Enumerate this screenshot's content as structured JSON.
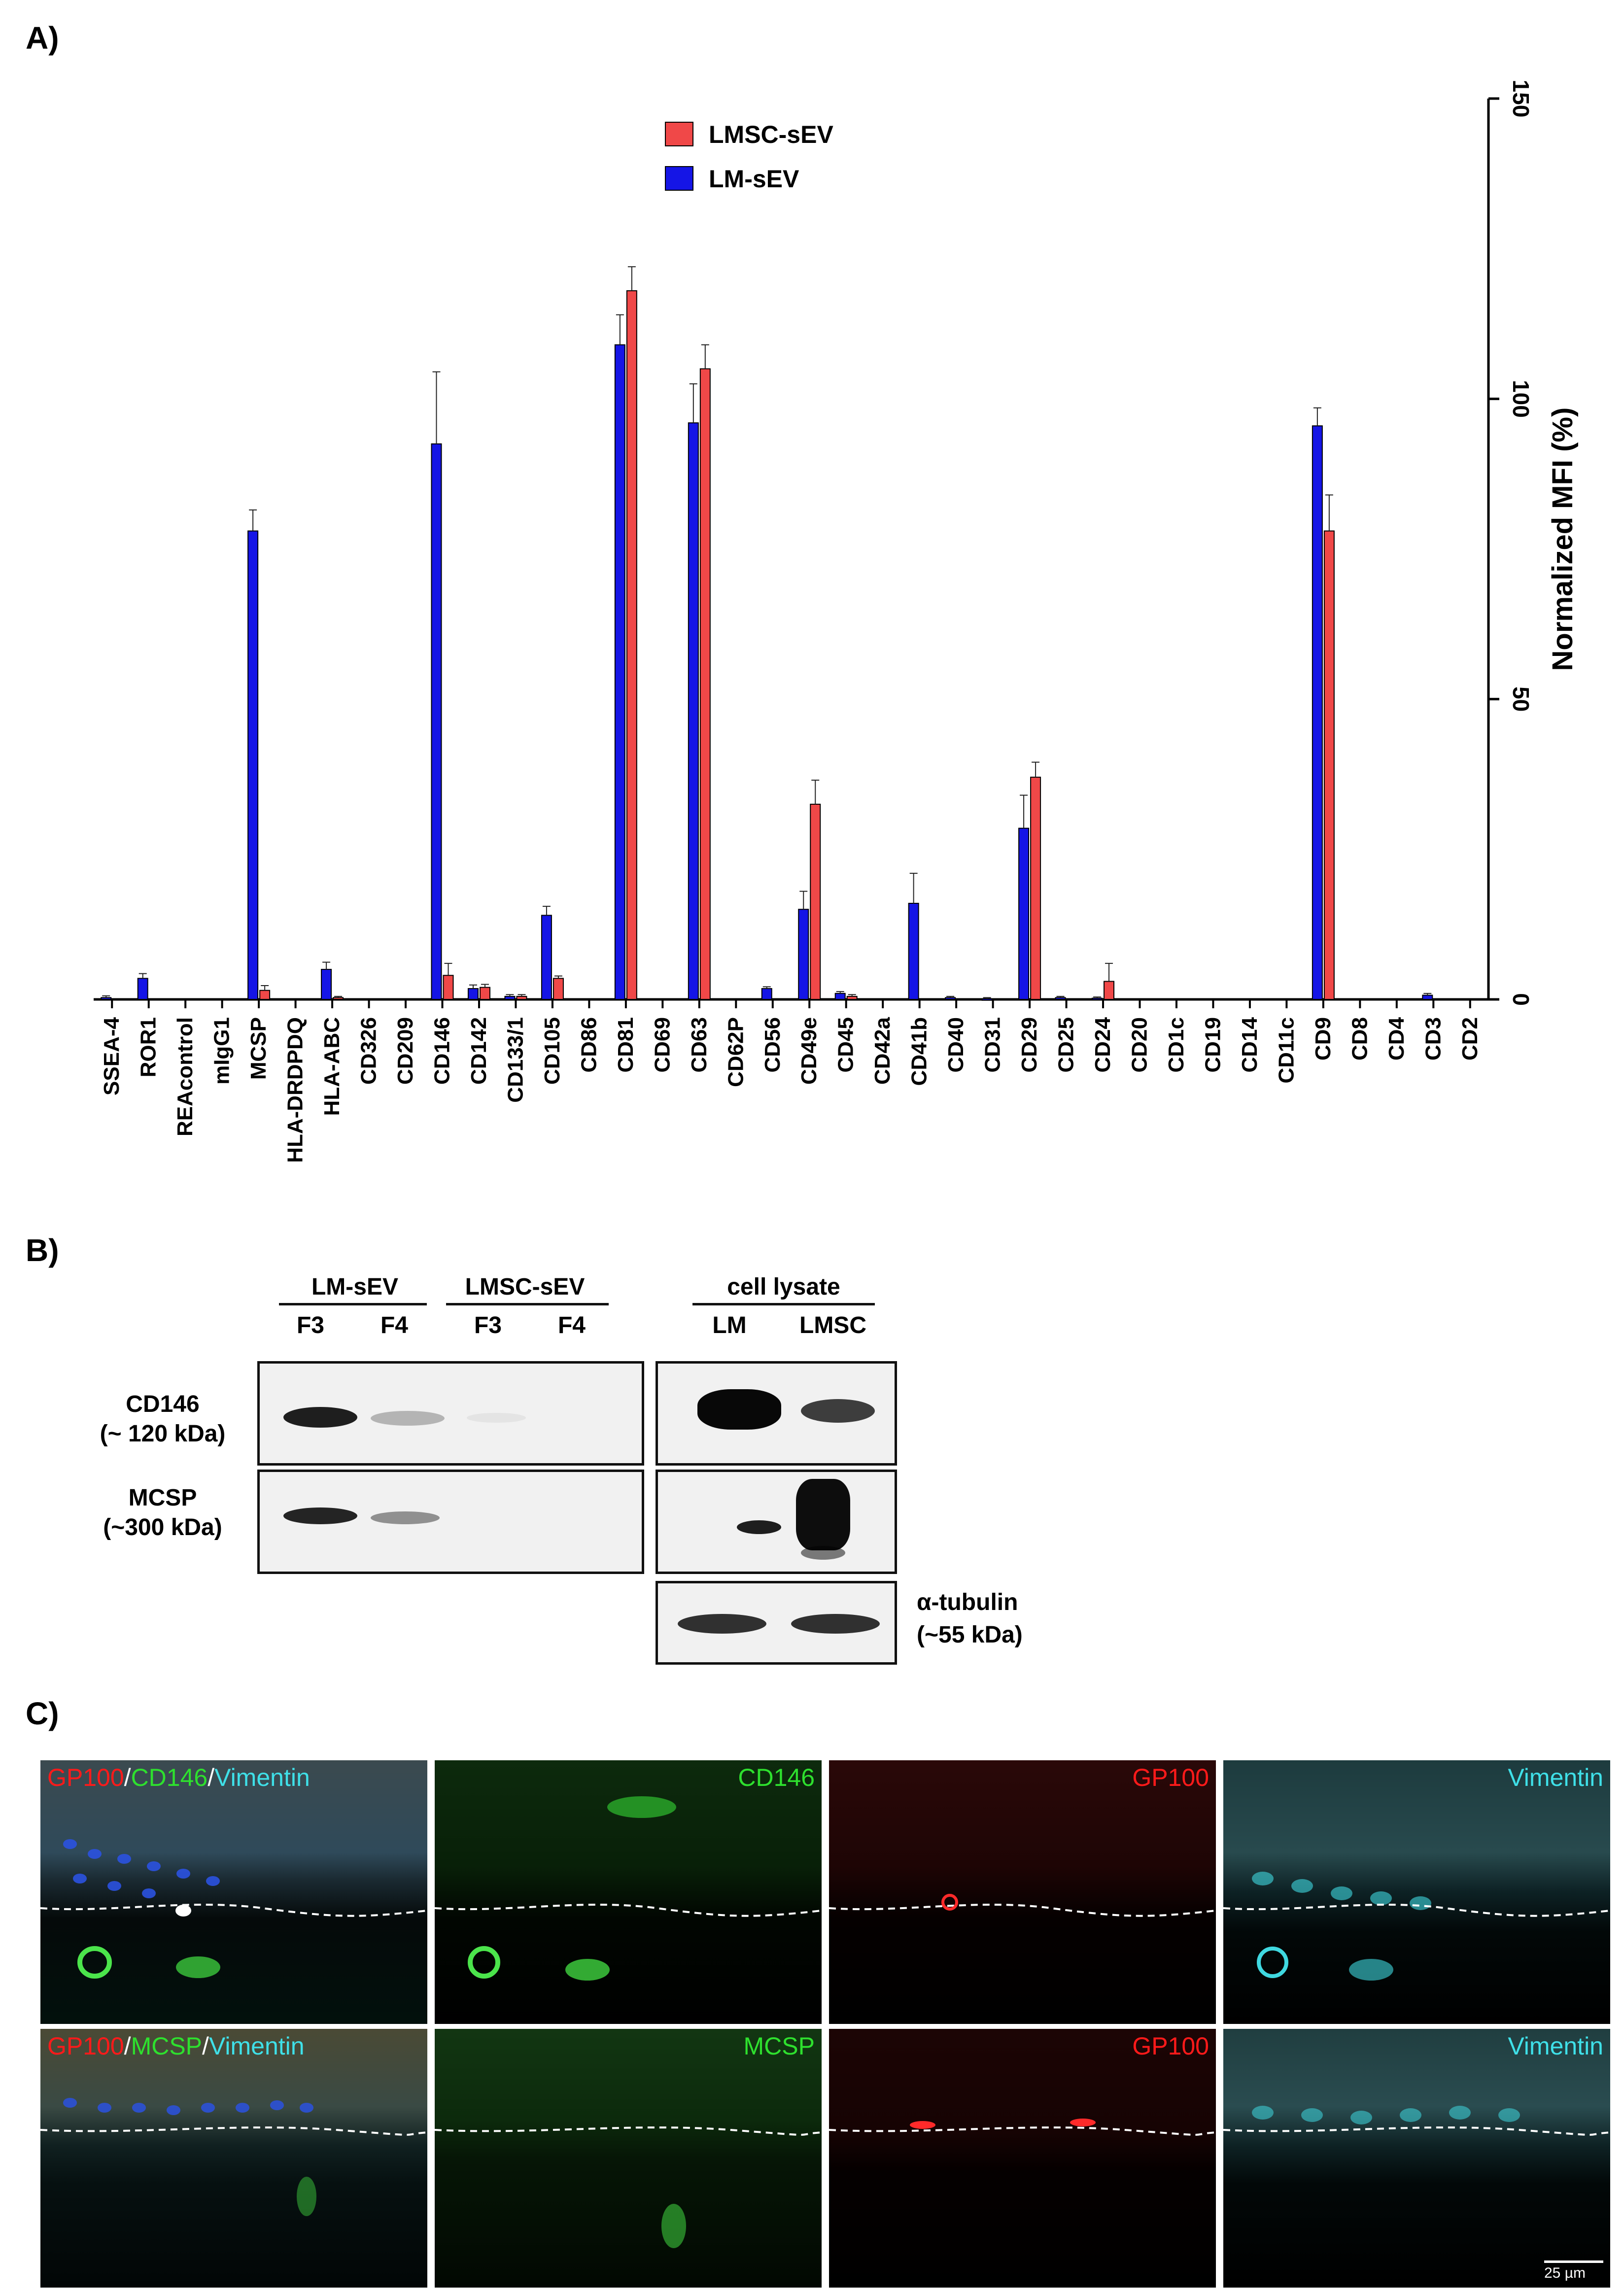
{
  "panel_labels": {
    "a": "A)",
    "b": "B)",
    "c": "C)"
  },
  "colors": {
    "lmsc": "#f04848",
    "lm": "#1515e6",
    "axis": "#000000"
  },
  "chart_data": {
    "type": "bar",
    "ylabel": "Normalized MFI (%)",
    "ylim": [
      0,
      150
    ],
    "yticks": [
      0,
      50,
      100,
      150
    ],
    "y_axis_side": "right",
    "legend_position": "top-center",
    "categories": [
      "SSEA-4",
      "ROR1",
      "REAcontrol",
      "mIgG1",
      "MCSP",
      "HLA-DRDPDQ",
      "HLA-ABC",
      "CD326",
      "CD209",
      "CD146",
      "CD142",
      "CD133/1",
      "CD105",
      "CD86",
      "CD81",
      "CD69",
      "CD63",
      "CD62P",
      "CD56",
      "CD49e",
      "CD45",
      "CD42a",
      "CD41b",
      "CD40",
      "CD31",
      "CD29",
      "CD25",
      "CD24",
      "CD20",
      "CD1c",
      "CD19",
      "CD14",
      "CD11c",
      "CD9",
      "CD8",
      "CD4",
      "CD3",
      "CD2"
    ],
    "series": [
      {
        "name": "LM-sEV",
        "color": "#1515e6",
        "values": [
          0.3,
          3.5,
          0,
          0,
          78,
          0,
          5,
          0,
          0,
          92.5,
          1.8,
          0.5,
          14,
          0,
          109,
          0,
          96,
          0,
          1.8,
          15,
          1,
          0,
          16,
          0.3,
          0.1,
          28.5,
          0.3,
          0.2,
          0,
          0,
          0,
          0,
          0,
          95.5,
          0,
          0,
          0.7,
          0
        ],
        "errors": [
          0.3,
          0.8,
          0,
          0,
          3.5,
          0,
          1.2,
          0,
          0,
          12,
          0.6,
          0.3,
          1.5,
          0,
          5,
          0,
          6.5,
          0,
          0.3,
          3,
          0.3,
          0,
          5,
          0.2,
          0.2,
          5.5,
          0.2,
          0.2,
          0,
          0,
          0,
          0,
          0,
          3,
          0,
          0,
          0.3,
          0
        ]
      },
      {
        "name": "LMSC-sEV",
        "color": "#f04848",
        "values": [
          0,
          0,
          0,
          0,
          1.5,
          0,
          0.3,
          0,
          0,
          4,
          2,
          0.5,
          3.5,
          0,
          118,
          0,
          105,
          0,
          0,
          32.5,
          0.5,
          0,
          0,
          0,
          0,
          37,
          0,
          3,
          0,
          0,
          0,
          0,
          0,
          78,
          0,
          0,
          0,
          0
        ],
        "errors": [
          0,
          0,
          0,
          0,
          0.8,
          0,
          0.2,
          0,
          0,
          2,
          0.5,
          0.3,
          0.4,
          0,
          4,
          0,
          4,
          0,
          0,
          4,
          0.3,
          0,
          0,
          0,
          0,
          2.5,
          0,
          3,
          0,
          0,
          0,
          0,
          0,
          6,
          0,
          0,
          0,
          0
        ]
      }
    ]
  },
  "western_blot": {
    "groups": [
      "LM-sEV",
      "LMSC-sEV",
      "cell lysate"
    ],
    "lanes": [
      "F3",
      "F4",
      "F3",
      "F4",
      "LM",
      "LMSC"
    ],
    "rows": [
      {
        "name": "CD146",
        "size": "(~ 120 kDa)"
      },
      {
        "name": "MCSP",
        "size": "(~300 kDa)"
      }
    ],
    "loading_control": {
      "name": "α-tubulin",
      "size": "(~55 kDa)"
    }
  },
  "microscopy": {
    "row1": {
      "merge_parts": [
        "GP100",
        "/",
        "CD146",
        "/",
        "Vimentin"
      ],
      "channels": [
        "CD146",
        "GP100",
        "Vimentin"
      ]
    },
    "row2": {
      "merge_parts": [
        "GP100",
        "/",
        "MCSP",
        "/",
        "Vimentin"
      ],
      "channels": [
        "MCSP",
        "GP100",
        "Vimentin"
      ]
    },
    "scale_bar": "25 µm",
    "channel_colors": {
      "GP100": "#ff1a1a",
      "CD146": "#2ee02e",
      "MCSP": "#2ee02e",
      "Vimentin": "#3fe0e8"
    }
  }
}
